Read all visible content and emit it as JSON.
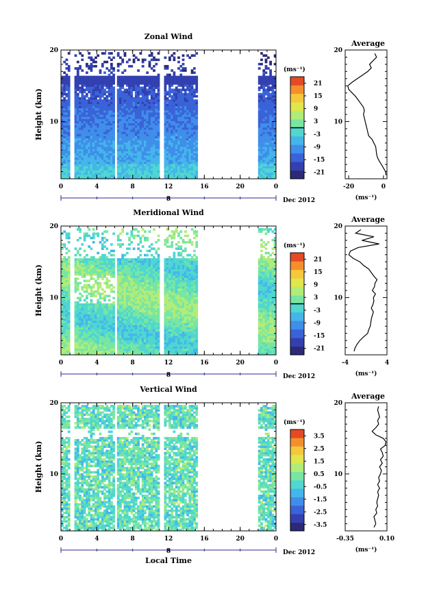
{
  "chart_data": [
    {
      "type": "heatmap",
      "title": "Zonal Wind",
      "xlabel": "",
      "ylabel": "Height (km)",
      "xticks": [
        "0",
        "4",
        "8",
        "12",
        "16",
        "20",
        "0"
      ],
      "xlim": [
        0,
        24
      ],
      "yticks": [
        "10",
        "20"
      ],
      "ylim": [
        2,
        20
      ],
      "date_axis": {
        "marker": "8",
        "label": "Dec 2012"
      },
      "data_gaps_hours": [
        [
          1.0,
          1.3
        ],
        [
          5.9,
          6.2
        ],
        [
          10.9,
          11.3
        ],
        [
          15.1,
          21.9
        ]
      ],
      "colorbar": {
        "unit": "(ms⁻¹)",
        "ticks": [
          "21",
          "15",
          "9",
          "3",
          "-3",
          "-9",
          "-15",
          "-21"
        ],
        "range": [
          -24,
          24
        ],
        "contour_level": 0
      },
      "profile": {
        "title": "Average",
        "xticks": [
          "-20",
          "0"
        ],
        "xlim": [
          -22,
          2
        ],
        "xlabel": "(ms⁻¹)",
        "heights_km": [
          2.5,
          3,
          3.5,
          4,
          4.5,
          5,
          5.5,
          6,
          6.5,
          7,
          7.5,
          8,
          8.5,
          9,
          9.5,
          10,
          10.5,
          11,
          11.5,
          12,
          12.5,
          13,
          13.5,
          14,
          14.5,
          15,
          15.5,
          16,
          16.5,
          17,
          17.5,
          18,
          18.5,
          19,
          19.5
        ],
        "values": [
          1.5,
          1.2,
          0,
          -1.2,
          -2.5,
          -3.5,
          -4,
          -4.2,
          -4.5,
          -5.5,
          -6.5,
          -8.5,
          -9,
          -9.5,
          -10,
          -10.5,
          -11,
          -11.5,
          -11,
          -11.5,
          -13,
          -14.5,
          -16,
          -18,
          -20,
          -20.5,
          -18,
          -15,
          -12,
          -9,
          -7,
          -8,
          -6,
          -4,
          -5
        ]
      }
    },
    {
      "type": "heatmap",
      "title": "Meridional Wind",
      "xlabel": "",
      "ylabel": "Height (km)",
      "xticks": [
        "0",
        "4",
        "8",
        "12",
        "16",
        "20",
        "0"
      ],
      "xlim": [
        0,
        24
      ],
      "yticks": [
        "10",
        "20"
      ],
      "ylim": [
        2,
        20
      ],
      "date_axis": {
        "marker": "8",
        "label": "Dec 2012"
      },
      "data_gaps_hours": [
        [
          1.0,
          1.3
        ],
        [
          5.9,
          6.2
        ],
        [
          10.9,
          11.3
        ],
        [
          15.1,
          21.9
        ]
      ],
      "colorbar": {
        "unit": "(ms⁻¹)",
        "ticks": [
          "21",
          "15",
          "9",
          "3",
          "-3",
          "-9",
          "-15",
          "-21"
        ],
        "range": [
          -24,
          24
        ],
        "contour_level": 0
      },
      "profile": {
        "title": "Average",
        "xticks": [
          "-4",
          "4"
        ],
        "xlim": [
          -4,
          4
        ],
        "xlabel": "(ms⁻¹)",
        "heights_km": [
          2.5,
          3,
          3.5,
          4,
          4.5,
          5,
          5.5,
          6,
          6.5,
          7,
          7.5,
          8,
          8.5,
          9,
          9.5,
          10,
          10.5,
          11,
          11.5,
          12,
          12.5,
          13,
          13.5,
          14,
          14.5,
          15,
          15.5,
          16,
          16.5,
          17,
          17.5,
          18,
          18.5,
          19,
          19.5
        ],
        "values": [
          -2.3,
          -2.1,
          -1.7,
          -1.2,
          -0.5,
          0.3,
          0.5,
          0.8,
          0.9,
          1.0,
          1.2,
          1.4,
          1.0,
          1.3,
          1.5,
          1.4,
          1.8,
          1.2,
          1.6,
          1.7,
          2.1,
          1.5,
          1.0,
          0.5,
          -0.5,
          -1.2,
          -2.5,
          -3.3,
          -3.0,
          -1.5,
          2.5,
          -0.8,
          1.5,
          -2.0,
          -1.0
        ]
      }
    },
    {
      "type": "heatmap",
      "title": "Vertical Wind",
      "xlabel": "Local Time",
      "ylabel": "Height (km)",
      "xticks": [
        "0",
        "4",
        "8",
        "12",
        "16",
        "20",
        "0"
      ],
      "xlim": [
        0,
        24
      ],
      "yticks": [
        "10",
        "20"
      ],
      "ylim": [
        2,
        20
      ],
      "date_axis": {
        "marker": "8",
        "label": "Dec 2012"
      },
      "data_gaps_hours": [
        [
          1.0,
          1.3
        ],
        [
          5.9,
          6.2
        ],
        [
          10.9,
          11.3
        ],
        [
          15.1,
          21.9
        ]
      ],
      "colorbar": {
        "unit": "(ms⁻¹)",
        "ticks": [
          "3.5",
          "2.5",
          "1.5",
          "0.5",
          "-0.5",
          "-1.5",
          "-2.5",
          "-3.5"
        ],
        "range": [
          -4,
          4
        ]
      },
      "profile": {
        "title": "Average",
        "xticks": [
          "-0.35",
          "0.10"
        ],
        "xlim": [
          -0.35,
          0.1
        ],
        "xlabel": "(ms⁻¹)",
        "heights_km": [
          2.5,
          3,
          3.5,
          4,
          4.5,
          5,
          5.5,
          6,
          6.5,
          7,
          7.5,
          8,
          8.5,
          9,
          9.5,
          10,
          10.5,
          11,
          11.5,
          12,
          12.5,
          13,
          13.5,
          14,
          14.5,
          15,
          15.5,
          16,
          16.5,
          17,
          17.5,
          18,
          18.5,
          19,
          19.5
        ],
        "values": [
          -0.04,
          -0.02,
          -0.03,
          -0.04,
          -0.01,
          -0.02,
          0.0,
          -0.01,
          0.0,
          0.01,
          0.0,
          0.02,
          0.0,
          0.02,
          0.01,
          0.03,
          0.04,
          0.02,
          0.05,
          0.03,
          0.06,
          0.05,
          0.03,
          0.08,
          0.09,
          0.06,
          -0.02,
          -0.06,
          -0.02,
          0.01,
          0.0,
          0.02,
          0.01,
          0.0,
          0.01
        ]
      }
    }
  ]
}
